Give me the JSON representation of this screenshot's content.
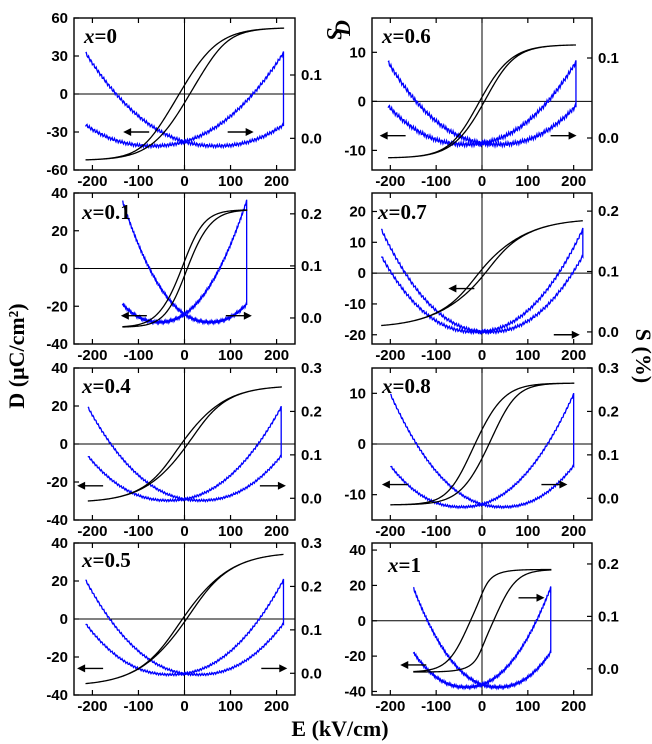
{
  "figure": {
    "xlabel": "E (kV/cm)",
    "ylabel_left": "D (μC/cm²)",
    "ylabel_right": "S (%)",
    "panel_ylabel_D": "D",
    "panel_ylabel_S": "S"
  },
  "colors": {
    "D_series": "#000000",
    "S_series": "#0000ff"
  },
  "chart_data": [
    {
      "type": "line",
      "panel": "x=0",
      "column": "left",
      "row": 0,
      "xlim": [
        -240,
        240
      ],
      "xticks": [
        -200,
        -100,
        0,
        100,
        200
      ],
      "ylim_D": [
        -60,
        60
      ],
      "yticks_D": [
        -60,
        -30,
        0,
        30,
        60
      ],
      "ylim_S": [
        -0.05,
        0.19
      ],
      "yticks_S": [
        0.0,
        0.1
      ],
      "D": {
        "Emax": 215,
        "Dmax": 52,
        "Pr": 8,
        "Ec": 60,
        "shift": 80
      },
      "S": {
        "Emax": 215,
        "Smax": 0.135,
        "Ec": 70,
        "Smin": -0.012,
        "ripple": true
      },
      "arrows": [
        {
          "x": -105,
          "y": -30,
          "dir": "left"
        },
        {
          "x": 122,
          "y": -30,
          "dir": "right"
        }
      ]
    },
    {
      "type": "line",
      "panel": "x=0.6",
      "column": "right",
      "row": 0,
      "xlim": [
        -240,
        240
      ],
      "xticks": [
        -200,
        -100,
        0,
        100,
        200
      ],
      "ylim_D": [
        -14,
        17
      ],
      "yticks_D": [
        -10,
        0,
        10
      ],
      "ylim_S": [
        -0.04,
        0.15
      ],
      "yticks_S": [
        0.0,
        0.1
      ],
      "D": {
        "Emax": 205,
        "Dmax": 11.5,
        "Pr": 1.5,
        "Ec": 30,
        "shift": 70
      },
      "S": {
        "Emax": 205,
        "Smax": 0.095,
        "Ec": 35,
        "Smin": -0.008,
        "ripple": true
      },
      "arrows": [
        {
          "x": -195,
          "y": -7,
          "dir": "left"
        },
        {
          "x": 178,
          "y": -7,
          "dir": "right"
        }
      ]
    },
    {
      "type": "line",
      "panel": "x=0.1",
      "column": "left",
      "row": 1,
      "xlim": [
        -240,
        240
      ],
      "xticks": [
        -200,
        -100,
        0,
        100,
        200
      ],
      "ylim_D": [
        -40,
        40
      ],
      "yticks_D": [
        -40,
        -20,
        0,
        20,
        40
      ],
      "ylim_S": [
        -0.05,
        0.24
      ],
      "yticks_S": [
        0.0,
        0.1,
        0.2
      ],
      "D": {
        "Emax": 135,
        "Dmax": 31,
        "Pr": 5,
        "Ec": 45,
        "shift": 45
      },
      "S": {
        "Emax": 135,
        "Smax": 0.225,
        "Ec": 55,
        "Smin": -0.008,
        "ripple": true
      },
      "arrows": [
        {
          "x": -110,
          "y": -25,
          "dir": "left"
        },
        {
          "x": 118,
          "y": -25,
          "dir": "right"
        }
      ]
    },
    {
      "type": "line",
      "panel": "x=0.7",
      "column": "right",
      "row": 1,
      "xlim": [
        -240,
        240
      ],
      "xticks": [
        -200,
        -100,
        0,
        100,
        200
      ],
      "ylim_D": [
        -23,
        26
      ],
      "yticks_D": [
        -20,
        -10,
        0,
        10,
        20
      ],
      "ylim_S": [
        -0.02,
        0.23
      ],
      "yticks_S": [
        0.0,
        0.1,
        0.2
      ],
      "D": {
        "Emax": 220,
        "Dmax": 17,
        "Pr": 3,
        "Ec": 20,
        "shift": 120
      },
      "S": {
        "Emax": 220,
        "Smax": 0.17,
        "Ec": 15,
        "Smin": 0.0,
        "ripple": true
      },
      "arrows": [
        {
          "x": -45,
          "y": -5,
          "dir": "left"
        },
        {
          "x": 185,
          "y": -20,
          "dir": "right"
        }
      ]
    },
    {
      "type": "line",
      "panel": "x=0.4",
      "column": "left",
      "row": 2,
      "xlim": [
        -240,
        240
      ],
      "xticks": [
        -200,
        -100,
        0,
        100,
        200
      ],
      "ylim_D": [
        -40,
        40
      ],
      "yticks_D": [
        -40,
        -20,
        0,
        20,
        40
      ],
      "ylim_S": [
        -0.05,
        0.3
      ],
      "yticks_S": [
        0.0,
        0.1,
        0.2,
        0.3
      ],
      "D": {
        "Emax": 210,
        "Dmax": 30,
        "Pr": 4,
        "Ec": 30,
        "shift": 100
      },
      "S": {
        "Emax": 210,
        "Smax": 0.21,
        "Ec": 35,
        "Smin": -0.005,
        "ripple": true
      },
      "arrows": [
        {
          "x": -205,
          "y": -22,
          "dir": "left"
        },
        {
          "x": 192,
          "y": -22,
          "dir": "right"
        }
      ]
    },
    {
      "type": "line",
      "panel": "x=0.8",
      "column": "right",
      "row": 2,
      "xlim": [
        -240,
        240
      ],
      "xticks": [
        -200,
        -100,
        0,
        100,
        200
      ],
      "ylim_D": [
        -15,
        15
      ],
      "yticks_D": [
        -10,
        0,
        10
      ],
      "ylim_S": [
        -0.05,
        0.3
      ],
      "yticks_S": [
        0.0,
        0.1,
        0.2,
        0.3
      ],
      "D": {
        "Emax": 200,
        "Dmax": 12,
        "Pr": 4,
        "Ec": 40,
        "shift": 60
      },
      "S": {
        "Emax": 200,
        "Smax": 0.24,
        "Ec": 45,
        "Smin": -0.02,
        "ripple": true
      },
      "arrows": [
        {
          "x": -190,
          "y": -8,
          "dir": "left"
        },
        {
          "x": 158,
          "y": -8,
          "dir": "right"
        }
      ]
    },
    {
      "type": "line",
      "panel": "x=0.5",
      "column": "left",
      "row": 3,
      "xlim": [
        -240,
        240
      ],
      "xticks": [
        -200,
        -100,
        0,
        100,
        200
      ],
      "ylim_D": [
        -40,
        40
      ],
      "yticks_D": [
        -40,
        -20,
        0,
        20,
        40
      ],
      "ylim_S": [
        -0.05,
        0.3
      ],
      "yticks_S": [
        0.0,
        0.1,
        0.2,
        0.3
      ],
      "D": {
        "Emax": 215,
        "Dmax": 34,
        "Pr": 3,
        "Ec": 25,
        "shift": 110
      },
      "S": {
        "Emax": 215,
        "Smax": 0.215,
        "Ec": 30,
        "Smin": -0.003,
        "ripple": true
      },
      "arrows": [
        {
          "x": -205,
          "y": -26,
          "dir": "left"
        },
        {
          "x": 195,
          "y": -26,
          "dir": "right"
        }
      ]
    },
    {
      "type": "line",
      "panel": "x=1",
      "column": "right",
      "row": 3,
      "xlim": [
        -240,
        240
      ],
      "xticks": [
        -200,
        -100,
        0,
        100,
        200
      ],
      "ylim_D": [
        -42,
        44
      ],
      "yticks_D": [
        -40,
        -20,
        0,
        20,
        40
      ],
      "ylim_S": [
        -0.05,
        0.24
      ],
      "yticks_S": [
        0.0,
        0.1,
        0.2
      ],
      "D": {
        "Emax": 150,
        "Dmax": 29,
        "Pr": 25,
        "Ec": 32,
        "shift": 15
      },
      "S": {
        "Emax": 150,
        "Smax": 0.155,
        "Ec": 35,
        "Smin": -0.035,
        "ripple": true
      },
      "arrows": [
        {
          "x": -150,
          "y": -25,
          "dir": "left"
        },
        {
          "x": 108,
          "y": 13,
          "dir": "right"
        }
      ]
    }
  ]
}
